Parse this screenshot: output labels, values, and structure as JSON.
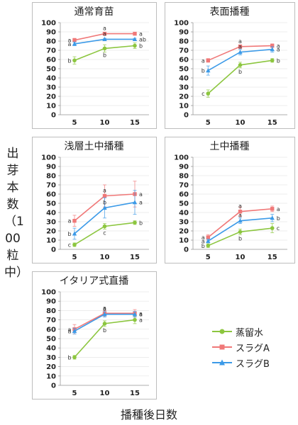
{
  "y_axis_label": "出芽本数（100粒中）",
  "x_axis_label": "播種後日数",
  "legend": [
    {
      "name": "蒸留水",
      "color": "#8CC63F",
      "marker": "circle"
    },
    {
      "name": "スラグA",
      "color": "#F07878",
      "marker": "square"
    },
    {
      "name": "スラグB",
      "color": "#3B9AE8",
      "marker": "triangle"
    }
  ],
  "chart_data": [
    {
      "type": "line",
      "title": "通常育苗",
      "x": [
        5,
        10,
        15
      ],
      "ylim": [
        0,
        100
      ],
      "yticks": [
        0,
        10,
        20,
        30,
        40,
        50,
        60,
        70,
        80,
        90,
        100
      ],
      "series": [
        {
          "name": "蒸留水",
          "values": [
            59,
            72,
            75
          ],
          "errors": [
            4,
            4,
            3
          ],
          "letters": [
            "b",
            "b",
            "b"
          ]
        },
        {
          "name": "スラグA",
          "values": [
            81,
            88,
            88
          ],
          "errors": [
            2,
            1,
            1
          ],
          "letters": [
            "a",
            "a",
            "a"
          ]
        },
        {
          "name": "スラグB",
          "values": [
            77,
            82,
            82
          ],
          "errors": [
            2,
            1,
            1
          ],
          "letters": [
            "a",
            "a",
            "ab"
          ]
        }
      ]
    },
    {
      "type": "line",
      "title": "表面播種",
      "x": [
        5,
        10,
        15
      ],
      "ylim": [
        0,
        100
      ],
      "yticks": [
        0,
        10,
        20,
        30,
        40,
        50,
        60,
        70,
        80,
        90,
        100
      ],
      "series": [
        {
          "name": "蒸留水",
          "values": [
            23,
            54,
            59
          ],
          "errors": [
            4,
            3,
            2
          ],
          "letters": [
            "c",
            "b",
            "b"
          ]
        },
        {
          "name": "スラグA",
          "values": [
            59,
            74,
            75
          ],
          "errors": [
            2,
            2,
            2
          ],
          "letters": [
            "a",
            "a",
            "a"
          ]
        },
        {
          "name": "スラグB",
          "values": [
            48,
            68,
            71
          ],
          "errors": [
            5,
            3,
            3
          ],
          "letters": [
            "b",
            "a",
            "a"
          ]
        }
      ]
    },
    {
      "type": "line",
      "title": "浅層土中播種",
      "x": [
        5,
        10,
        15
      ],
      "ylim": [
        0,
        100
      ],
      "yticks": [
        0,
        10,
        20,
        30,
        40,
        50,
        60,
        70,
        80,
        90,
        100
      ],
      "series": [
        {
          "name": "蒸留水",
          "values": [
            5,
            25,
            29
          ],
          "errors": [
            2,
            3,
            2
          ],
          "letters": [
            "c",
            "c",
            "b"
          ]
        },
        {
          "name": "スラグA",
          "values": [
            31,
            58,
            60
          ],
          "errors": [
            6,
            12,
            14
          ],
          "letters": [
            "a",
            "a",
            "a"
          ]
        },
        {
          "name": "スラグB",
          "values": [
            17,
            45,
            51
          ],
          "errors": [
            6,
            11,
            13
          ],
          "letters": [
            "b",
            "b",
            "a"
          ]
        }
      ]
    },
    {
      "type": "line",
      "title": "土中播種",
      "x": [
        5,
        10,
        15
      ],
      "ylim": [
        0,
        100
      ],
      "yticks": [
        0,
        10,
        20,
        30,
        40,
        50,
        60,
        70,
        80,
        90,
        100
      ],
      "series": [
        {
          "name": "蒸留水",
          "values": [
            4,
            19,
            23
          ],
          "errors": [
            2,
            3,
            5
          ],
          "letters": [
            "b",
            "b",
            "c"
          ]
        },
        {
          "name": "スラグA",
          "values": [
            13,
            41,
            44
          ],
          "errors": [
            3,
            5,
            3
          ],
          "letters": [
            "a",
            "a",
            "a"
          ]
        },
        {
          "name": "スラグB",
          "values": [
            9,
            31,
            34
          ],
          "errors": [
            2,
            3,
            4
          ],
          "letters": [
            "a",
            "a",
            "b"
          ]
        }
      ]
    },
    {
      "type": "line",
      "title": "イタリア式直播",
      "x": [
        5,
        10,
        15
      ],
      "ylim": [
        0,
        100
      ],
      "yticks": [
        0,
        10,
        20,
        30,
        40,
        50,
        60,
        70,
        80,
        90,
        100
      ],
      "series": [
        {
          "name": "蒸留水",
          "values": [
            30,
            66,
            70
          ],
          "errors": [
            2,
            3,
            4
          ],
          "letters": [
            "b",
            "b",
            "a"
          ]
        },
        {
          "name": "スラグA",
          "values": [
            60,
            77,
            77
          ],
          "errors": [
            5,
            3,
            4
          ],
          "letters": [
            "a",
            "a",
            "a"
          ]
        },
        {
          "name": "スラグB",
          "values": [
            58,
            76,
            76
          ],
          "errors": [
            3,
            3,
            3
          ],
          "letters": [
            "a",
            "a",
            "a"
          ]
        }
      ]
    }
  ]
}
